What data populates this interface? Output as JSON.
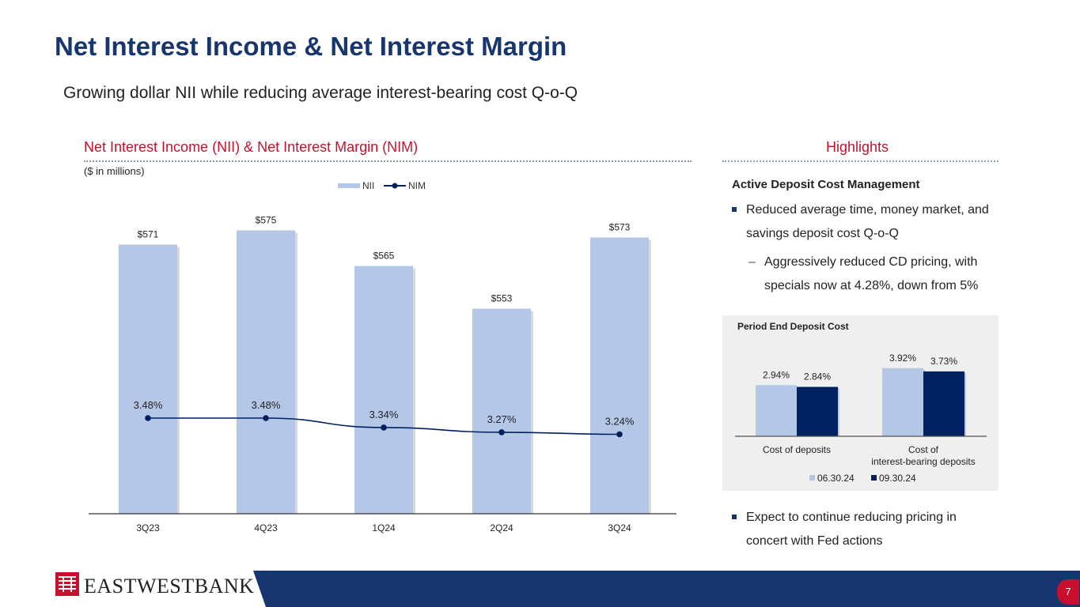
{
  "slide": {
    "title": "Net Interest Income & Net Interest Margin",
    "subtitle": "Growing dollar NII while reducing average interest-bearing cost Q-o-Q",
    "page_number": "7"
  },
  "left_section": {
    "header": "Net Interest Income (NII) & Net Interest Margin (NIM)",
    "units": "($ in millions)"
  },
  "right_section": {
    "header": "Highlights",
    "highlight_title": "Active Deposit Cost Management",
    "bullet1": "Reduced average time, money market, and savings deposit cost Q-o-Q",
    "sub_bullet1": "Aggressively reduced CD pricing, with specials now at 4.28%, down from 5%",
    "sub_dash": "–",
    "bullet2": "Expect to continue reducing pricing in concert with Fed actions"
  },
  "logo": {
    "text": "EASTWESTBANK"
  },
  "colors": {
    "navy": "#17366f",
    "red": "#c8102e",
    "bar_light": "#b4c7e7",
    "bar_dark": "#002060"
  },
  "chart_data": [
    {
      "type": "bar",
      "categories": [
        "3Q23",
        "4Q23",
        "1Q24",
        "2Q24",
        "3Q24"
      ],
      "series": [
        {
          "name": "NII",
          "type": "bar",
          "values": [
            571,
            575,
            565,
            553,
            573
          ],
          "labels": [
            "$571",
            "$575",
            "$565",
            "$553",
            "$573"
          ]
        },
        {
          "name": "NIM",
          "type": "line",
          "values": [
            3.48,
            3.48,
            3.34,
            3.27,
            3.24
          ],
          "labels": [
            "3.48%",
            "3.48%",
            "3.34%",
            "3.27%",
            "3.24%"
          ]
        }
      ],
      "legend": "top",
      "grid": false
    },
    {
      "type": "bar",
      "title": "Period End Deposit Cost",
      "categories": [
        "Cost of deposits",
        "Cost of interest-bearing deposits"
      ],
      "series": [
        {
          "name": "06.30.24",
          "values": [
            2.94,
            3.92
          ],
          "labels": [
            "2.94%",
            "3.92%"
          ]
        },
        {
          "name": "09.30.24",
          "values": [
            2.84,
            3.73
          ],
          "labels": [
            "2.84%",
            "3.73%"
          ]
        }
      ],
      "legend": "bottom",
      "grid": false
    }
  ]
}
